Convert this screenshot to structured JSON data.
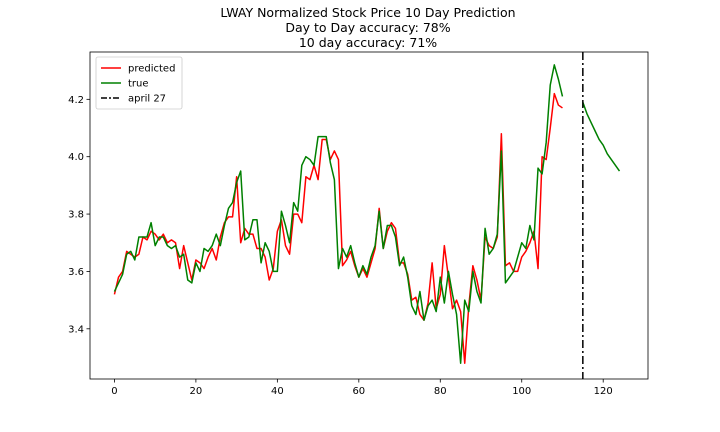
{
  "chart_data": {
    "type": "line",
    "title_lines": [
      "LWAY Normalized Stock Price 10 Day Prediction",
      "Day to Day accuracy: 78%",
      "10 day accuracy: 71%"
    ],
    "xlim": [
      -6,
      131
    ],
    "ylim": [
      3.225,
      4.365
    ],
    "x_ticks": [
      0,
      20,
      40,
      60,
      80,
      100,
      120
    ],
    "x_tick_labels": [
      "0",
      "20",
      "40",
      "60",
      "80",
      "100",
      "120"
    ],
    "y_ticks": [
      3.4,
      3.6,
      3.8,
      4.0,
      4.2
    ],
    "y_tick_labels": [
      "3.4",
      "3.6",
      "3.8",
      "4.0",
      "4.2"
    ],
    "legend": {
      "position": "top-left",
      "entries": [
        "predicted",
        "true",
        "april 27"
      ]
    },
    "series": [
      {
        "name": "predicted",
        "color": "#ff0000",
        "x_start": 0,
        "values": [
          3.52,
          3.58,
          3.6,
          3.67,
          3.66,
          3.65,
          3.66,
          3.72,
          3.71,
          3.74,
          3.73,
          3.71,
          3.73,
          3.7,
          3.71,
          3.7,
          3.61,
          3.69,
          3.63,
          3.57,
          3.64,
          3.63,
          3.61,
          3.65,
          3.68,
          3.64,
          3.72,
          3.77,
          3.79,
          3.79,
          3.93,
          3.7,
          3.75,
          3.73,
          3.73,
          3.68,
          3.68,
          3.65,
          3.57,
          3.61,
          3.74,
          3.78,
          3.69,
          3.66,
          3.8,
          3.8,
          3.77,
          3.93,
          3.92,
          3.97,
          3.92,
          4.06,
          4.06,
          3.99,
          4.02,
          3.99,
          3.62,
          3.64,
          3.67,
          3.62,
          3.58,
          3.61,
          3.58,
          3.63,
          3.68,
          3.82,
          3.68,
          3.74,
          3.77,
          3.75,
          3.63,
          3.63,
          3.59,
          3.5,
          3.51,
          3.45,
          3.43,
          3.49,
          3.63,
          3.47,
          3.52,
          3.69,
          3.58,
          3.47,
          3.5,
          3.46,
          3.28,
          3.48,
          3.62,
          3.57,
          3.5,
          3.72,
          3.69,
          3.68,
          3.72,
          4.08,
          3.62,
          3.63,
          3.6,
          3.6,
          3.65,
          3.67,
          3.7,
          3.74,
          3.61,
          4.0,
          3.99,
          4.1,
          4.22,
          4.18,
          4.17
        ]
      },
      {
        "name": "true",
        "color": "#008000",
        "x_start": 0,
        "values": [
          3.53,
          3.56,
          3.59,
          3.66,
          3.67,
          3.64,
          3.72,
          3.72,
          3.72,
          3.77,
          3.69,
          3.72,
          3.72,
          3.69,
          3.68,
          3.69,
          3.65,
          3.66,
          3.57,
          3.56,
          3.63,
          3.6,
          3.68,
          3.67,
          3.69,
          3.73,
          3.69,
          3.76,
          3.82,
          3.84,
          3.91,
          3.95,
          3.71,
          3.72,
          3.78,
          3.78,
          3.63,
          3.7,
          3.67,
          3.6,
          3.6,
          3.81,
          3.76,
          3.7,
          3.84,
          3.81,
          3.97,
          4.0,
          3.99,
          3.97,
          4.07,
          4.07,
          4.07,
          3.98,
          3.92,
          3.61,
          3.68,
          3.65,
          3.69,
          3.63,
          3.58,
          3.62,
          3.59,
          3.65,
          3.69,
          3.81,
          3.68,
          3.76,
          3.76,
          3.72,
          3.62,
          3.65,
          3.58,
          3.48,
          3.45,
          3.53,
          3.43,
          3.48,
          3.5,
          3.46,
          3.58,
          3.49,
          3.6,
          3.52,
          3.45,
          3.28,
          3.5,
          3.46,
          3.6,
          3.53,
          3.49,
          3.75,
          3.66,
          3.68,
          3.73,
          4.02,
          3.56,
          3.58,
          3.6,
          3.65,
          3.7,
          3.68,
          3.76,
          3.71,
          3.96,
          3.94,
          4.05,
          4.25,
          4.32,
          4.27,
          4.21
        ]
      },
      {
        "name": "true",
        "color": "#008000",
        "x_start": 115,
        "values": [
          4.19,
          4.15,
          4.12,
          4.09,
          4.06,
          4.04,
          4.01,
          3.99,
          3.97,
          3.95
        ]
      }
    ],
    "vline": {
      "name": "april 27",
      "x": 115,
      "style": "dash-dot",
      "color": "#000000"
    }
  }
}
